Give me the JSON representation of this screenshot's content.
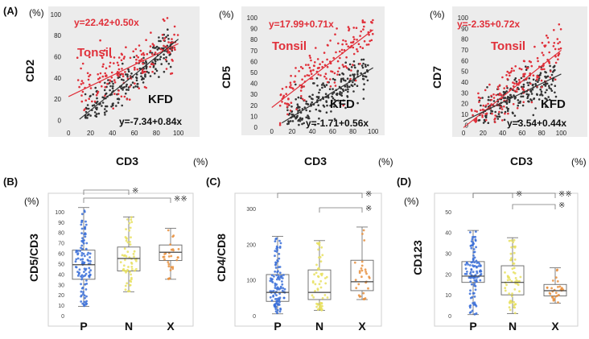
{
  "colors": {
    "tonsil": "#e0303a",
    "kfd": "#333333",
    "panel_bg": "#ececec",
    "box_bg": "#ffffff",
    "group_p": "#3a6fd8",
    "group_n": "#e8e060",
    "group_x": "#e89040",
    "line": "#666666"
  },
  "chart_data": [
    {
      "id": "A1",
      "type": "scatter",
      "panel_label": "(A)",
      "xlabel": "CD3",
      "ylabel": "CD2",
      "x_unit": "(%)",
      "y_unit": "(%)",
      "xlim": [
        0,
        100
      ],
      "ylim": [
        0,
        100
      ],
      "x_ticks": [
        "0",
        "20",
        "40",
        "60",
        "80",
        "100"
      ],
      "y_ticks": [
        "0",
        "20",
        "40",
        "60",
        "80",
        "100"
      ],
      "series": [
        {
          "name": "Tonsil",
          "equation": "y=22.42+0.50x",
          "intercept": 22.42,
          "slope": 0.5,
          "x_range": [
            0,
            100
          ]
        },
        {
          "name": "KFD",
          "equation": "y=-7.34+0.84x",
          "intercept": -7.34,
          "slope": 0.84,
          "x_range": [
            10,
            100
          ]
        }
      ]
    },
    {
      "id": "A2",
      "type": "scatter",
      "panel_label": "",
      "xlabel": "CD3",
      "ylabel": "CD5",
      "x_unit": "(%)",
      "y_unit": "(%)",
      "xlim": [
        0,
        100
      ],
      "ylim": [
        0,
        100
      ],
      "x_ticks": [
        "0",
        "20",
        "40",
        "60",
        "80",
        "100"
      ],
      "y_ticks": [
        "0",
        "10",
        "20",
        "30",
        "40",
        "50",
        "60",
        "70",
        "80",
        "90",
        "100"
      ],
      "series": [
        {
          "name": "Tonsil",
          "equation": "y=17.99+0.71x",
          "intercept": 17.99,
          "slope": 0.71,
          "x_range": [
            0,
            100
          ]
        },
        {
          "name": "KFD",
          "equation": "y=-1.71+0.56x",
          "intercept": -1.71,
          "slope": 0.56,
          "x_range": [
            10,
            100
          ]
        }
      ]
    },
    {
      "id": "A3",
      "type": "scatter",
      "panel_label": "",
      "xlabel": "CD3",
      "ylabel": "CD7",
      "x_unit": "(%)",
      "y_unit": "(%)",
      "xlim": [
        0,
        100
      ],
      "ylim": [
        0,
        100
      ],
      "x_ticks": [
        "0",
        "20",
        "40",
        "60",
        "80",
        "100"
      ],
      "y_ticks": [
        "0",
        "10",
        "20",
        "30",
        "40",
        "50",
        "60",
        "70",
        "80",
        "90",
        "100"
      ],
      "series": [
        {
          "name": "Tonsil",
          "equation": "y=-2.35+0.72x",
          "intercept": -2.35,
          "slope": 0.72,
          "x_range": [
            0,
            100
          ]
        },
        {
          "name": "KFD",
          "equation": "y=3.54+0.44x",
          "intercept": 3.54,
          "slope": 0.44,
          "x_range": [
            0,
            100
          ]
        }
      ]
    },
    {
      "id": "B",
      "type": "box",
      "panel_label": "(B)",
      "ylabel": "CD5/CD3",
      "y_unit": "(%)",
      "ylim": [
        0,
        110
      ],
      "y_ticks": [
        "0",
        "10",
        "20",
        "30",
        "40",
        "50",
        "60",
        "70",
        "80",
        "90",
        "100"
      ],
      "categories": [
        "P",
        "N",
        "X"
      ],
      "boxes": [
        {
          "min": 9,
          "q1": 35,
          "median": 49,
          "q3": 63,
          "max": 104
        },
        {
          "min": 23,
          "q1": 43,
          "median": 55,
          "q3": 66,
          "max": 95
        },
        {
          "min": 35,
          "q1": 53,
          "median": 61,
          "q3": 68,
          "max": 84
        }
      ],
      "brackets": [
        {
          "from": 0,
          "to": 1,
          "label": "※"
        },
        {
          "from": 0,
          "to": 2,
          "label": "※※"
        }
      ]
    },
    {
      "id": "C",
      "type": "box",
      "panel_label": "(C)",
      "ylabel": "CD4/CD8",
      "y_unit": "",
      "ylim": [
        0,
        320
      ],
      "y_ticks": [
        "0",
        "100",
        "200",
        "300"
      ],
      "categories": [
        "P",
        "N",
        "X"
      ],
      "boxes": [
        {
          "min": 5,
          "q1": 40,
          "median": 65,
          "q3": 115,
          "max": 222
        },
        {
          "min": 15,
          "q1": 45,
          "median": 65,
          "q3": 128,
          "max": 210
        },
        {
          "min": 45,
          "q1": 70,
          "median": 95,
          "q3": 155,
          "max": 248
        }
      ],
      "brackets": [
        {
          "from": 0,
          "to": 2,
          "label": "※"
        },
        {
          "from": 1,
          "to": 2,
          "label": "※"
        }
      ]
    },
    {
      "id": "D",
      "type": "box",
      "panel_label": "(D)",
      "ylabel": "CD123",
      "y_unit": "(%)",
      "ylim": [
        0,
        55
      ],
      "y_ticks": [
        "0",
        "10",
        "20",
        "30",
        "40",
        "50"
      ],
      "categories": [
        "P",
        "N",
        "X"
      ],
      "boxes": [
        {
          "min": 0.5,
          "q1": 16,
          "median": 19,
          "q3": 26,
          "max": 41
        },
        {
          "min": 1,
          "q1": 10,
          "median": 16,
          "q3": 24,
          "max": 37.5
        },
        {
          "min": 6,
          "q1": 9.5,
          "median": 12,
          "q3": 15,
          "max": 23
        }
      ],
      "brackets": [
        {
          "from": 0,
          "to": 1,
          "label": "※"
        },
        {
          "from": 1,
          "to": 2,
          "label": "※"
        },
        {
          "from": 0,
          "to": 2,
          "label": "※※"
        }
      ]
    }
  ]
}
